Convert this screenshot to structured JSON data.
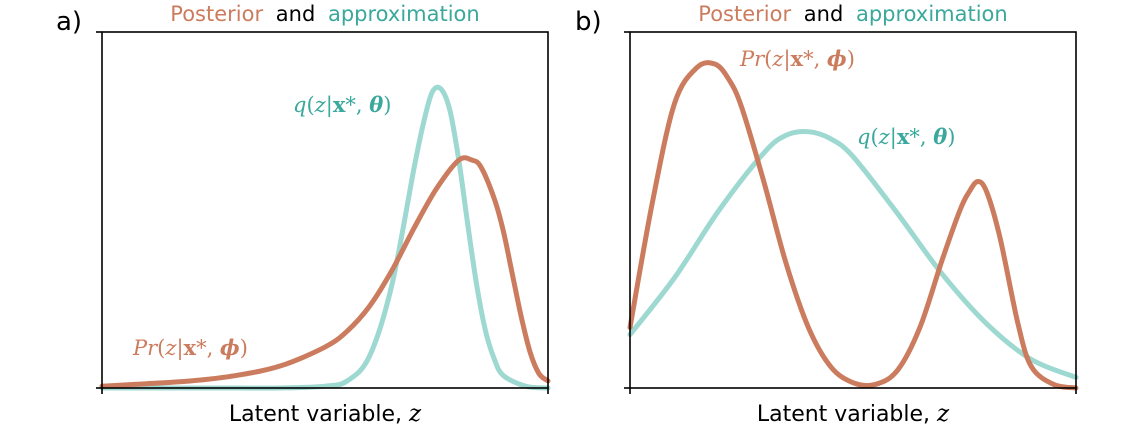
{
  "colors": {
    "posterior": "#cc7c5e",
    "approximation": "#9dd8d1",
    "approximation_text": "#3aa89c",
    "axis": "#000000"
  },
  "chart_data": [
    {
      "type": "line",
      "panel_label": "a)",
      "title_parts": [
        "Posterior",
        "and",
        "approximation"
      ],
      "xlabel": "Latent variable, ",
      "xlabel_var": "z",
      "xlim": [
        0,
        1
      ],
      "ylim": [
        0,
        1
      ],
      "grid": false,
      "series": [
        {
          "role": "approximation",
          "name": "q(z|x*, θ)",
          "x": [
            0.0,
            0.1,
            0.2,
            0.3,
            0.4,
            0.5,
            0.55,
            0.6,
            0.65,
            0.7,
            0.72,
            0.74,
            0.76,
            0.78,
            0.8,
            0.82,
            0.84,
            0.86,
            0.88,
            0.9,
            0.95,
            1.0
          ],
          "y": [
            0.0,
            0.0,
            0.0,
            0.0,
            0.0,
            0.005,
            0.02,
            0.09,
            0.29,
            0.62,
            0.74,
            0.83,
            0.84,
            0.78,
            0.64,
            0.46,
            0.29,
            0.16,
            0.08,
            0.035,
            0.005,
            0.0
          ]
        },
        {
          "role": "posterior",
          "name": "Pr(z|x*, ϕ)",
          "x": [
            0.0,
            0.1,
            0.2,
            0.3,
            0.4,
            0.5,
            0.55,
            0.6,
            0.65,
            0.7,
            0.75,
            0.8,
            0.83,
            0.85,
            0.88,
            0.9,
            0.92,
            0.94,
            0.96,
            0.98,
            1.0
          ],
          "y": [
            0.005,
            0.012,
            0.02,
            0.035,
            0.062,
            0.115,
            0.16,
            0.23,
            0.33,
            0.45,
            0.56,
            0.64,
            0.64,
            0.62,
            0.53,
            0.44,
            0.32,
            0.2,
            0.1,
            0.04,
            0.02
          ]
        }
      ]
    },
    {
      "type": "line",
      "panel_label": "b)",
      "title_parts": [
        "Posterior",
        "and",
        "approximation"
      ],
      "xlabel": "Latent variable, ",
      "xlabel_var": "z",
      "xlim": [
        0,
        1
      ],
      "ylim": [
        0,
        1
      ],
      "grid": false,
      "series": [
        {
          "role": "approximation",
          "name": "q(z|x*, θ)",
          "x": [
            0.0,
            0.1,
            0.2,
            0.3,
            0.35,
            0.4,
            0.45,
            0.5,
            0.6,
            0.7,
            0.8,
            0.9,
            1.0
          ],
          "y": [
            0.15,
            0.31,
            0.5,
            0.66,
            0.71,
            0.72,
            0.7,
            0.65,
            0.49,
            0.32,
            0.18,
            0.08,
            0.03
          ]
        },
        {
          "role": "posterior",
          "name": "Pr(z|x*, ϕ)",
          "x": [
            0.0,
            0.05,
            0.1,
            0.15,
            0.19,
            0.22,
            0.25,
            0.3,
            0.35,
            0.4,
            0.45,
            0.5,
            0.55,
            0.6,
            0.65,
            0.7,
            0.74,
            0.76,
            0.78,
            0.8,
            0.83,
            0.87,
            0.9,
            0.95,
            1.0
          ],
          "y": [
            0.17,
            0.52,
            0.8,
            0.9,
            0.91,
            0.87,
            0.79,
            0.58,
            0.35,
            0.17,
            0.06,
            0.015,
            0.01,
            0.05,
            0.17,
            0.36,
            0.5,
            0.55,
            0.58,
            0.55,
            0.42,
            0.18,
            0.06,
            0.01,
            0.0
          ]
        }
      ]
    }
  ]
}
